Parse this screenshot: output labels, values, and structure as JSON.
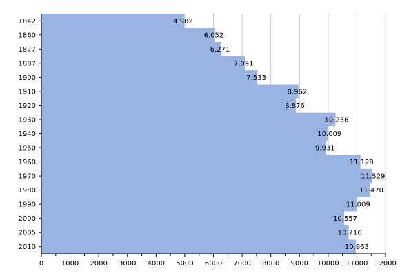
{
  "chart_data": {
    "type": "area",
    "orientation": "horizontal",
    "title": "",
    "xlabel": "",
    "ylabel": "",
    "categories": [
      "1842",
      "1860",
      "1877",
      "1887",
      "1900",
      "1910",
      "1920",
      "1930",
      "1940",
      "1950",
      "1960",
      "1970",
      "1980",
      "1990",
      "2000",
      "2005",
      "2010"
    ],
    "values": [
      4982,
      6052,
      6271,
      7091,
      7533,
      8962,
      8876,
      10256,
      10009,
      9931,
      11128,
      11529,
      11470,
      11009,
      10557,
      10716,
      10963
    ],
    "value_labels": [
      "4.982",
      "6.052",
      "6.271",
      "7.091",
      "7.533",
      "8.962",
      "8.876",
      "10.256",
      "10.009",
      "9.931",
      "11.128",
      "11.529",
      "11.470",
      "11.009",
      "10.557",
      "10.716",
      "10.963"
    ],
    "xlim": [
      0,
      12000
    ],
    "xticks": [
      0,
      1000,
      2000,
      3000,
      4000,
      5000,
      6000,
      7000,
      8000,
      9000,
      10000,
      11000,
      12000
    ],
    "xtick_labels": [
      "0",
      "1000",
      "2000",
      "3000",
      "4000",
      "5000",
      "6000",
      "7000",
      "8000",
      "9000",
      "10000",
      "11000",
      "12000"
    ],
    "grid": "vertical",
    "legend": "none",
    "colors": {
      "fill": "#99b3e2",
      "grid": "#c8c8c8",
      "axis": "#000000",
      "text": "#000000"
    }
  }
}
